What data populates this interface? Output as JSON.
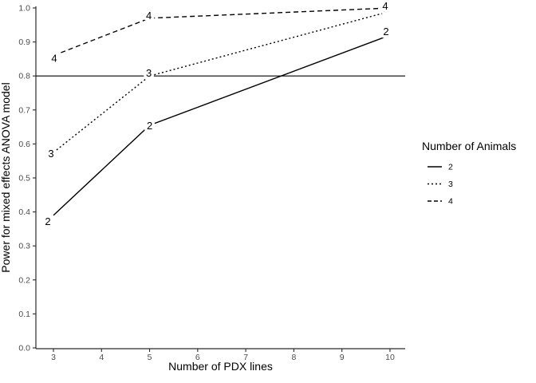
{
  "chart_data": {
    "type": "line",
    "title": "",
    "xlabel": "Number of PDX lines",
    "ylabel": "Power for mixed effects ANOVA model",
    "xlim": [
      3,
      10
    ],
    "ylim": [
      0.0,
      1.0
    ],
    "x_ticks": [
      3,
      4,
      5,
      6,
      7,
      8,
      9,
      10
    ],
    "y_ticks": [
      0.0,
      0.1,
      0.2,
      0.3,
      0.4,
      0.5,
      0.6,
      0.7,
      0.8,
      0.9,
      1.0
    ],
    "grid": "off",
    "reference_line": {
      "y": 0.8,
      "style": "solid"
    },
    "series": [
      {
        "name": "2",
        "linetype": "solid",
        "x": [
          3,
          5,
          10
        ],
        "y": [
          0.39,
          0.655,
          0.92
        ],
        "point_labels": [
          "2",
          "2",
          "2"
        ]
      },
      {
        "name": "3",
        "linetype": "dotted",
        "x": [
          3,
          5,
          10
        ],
        "y": [
          0.575,
          0.8,
          0.99
        ],
        "point_labels": [
          "3",
          "3",
          "3"
        ]
      },
      {
        "name": "4",
        "linetype": "dashed",
        "x": [
          3,
          5,
          10
        ],
        "y": [
          0.86,
          0.97,
          1.0
        ],
        "point_labels": [
          "4",
          "4",
          "4"
        ]
      }
    ],
    "legend": {
      "title": "Number of Animals",
      "position": "right",
      "entries": [
        {
          "label": "2",
          "linetype": "solid"
        },
        {
          "label": "3",
          "linetype": "dotted"
        },
        {
          "label": "4",
          "linetype": "dashed"
        }
      ]
    },
    "colors": {
      "line": "#000000",
      "axis": "#2b2b2b",
      "tick_label": "#4d4d4d",
      "title_text": "#000000",
      "background": "#ffffff"
    }
  }
}
